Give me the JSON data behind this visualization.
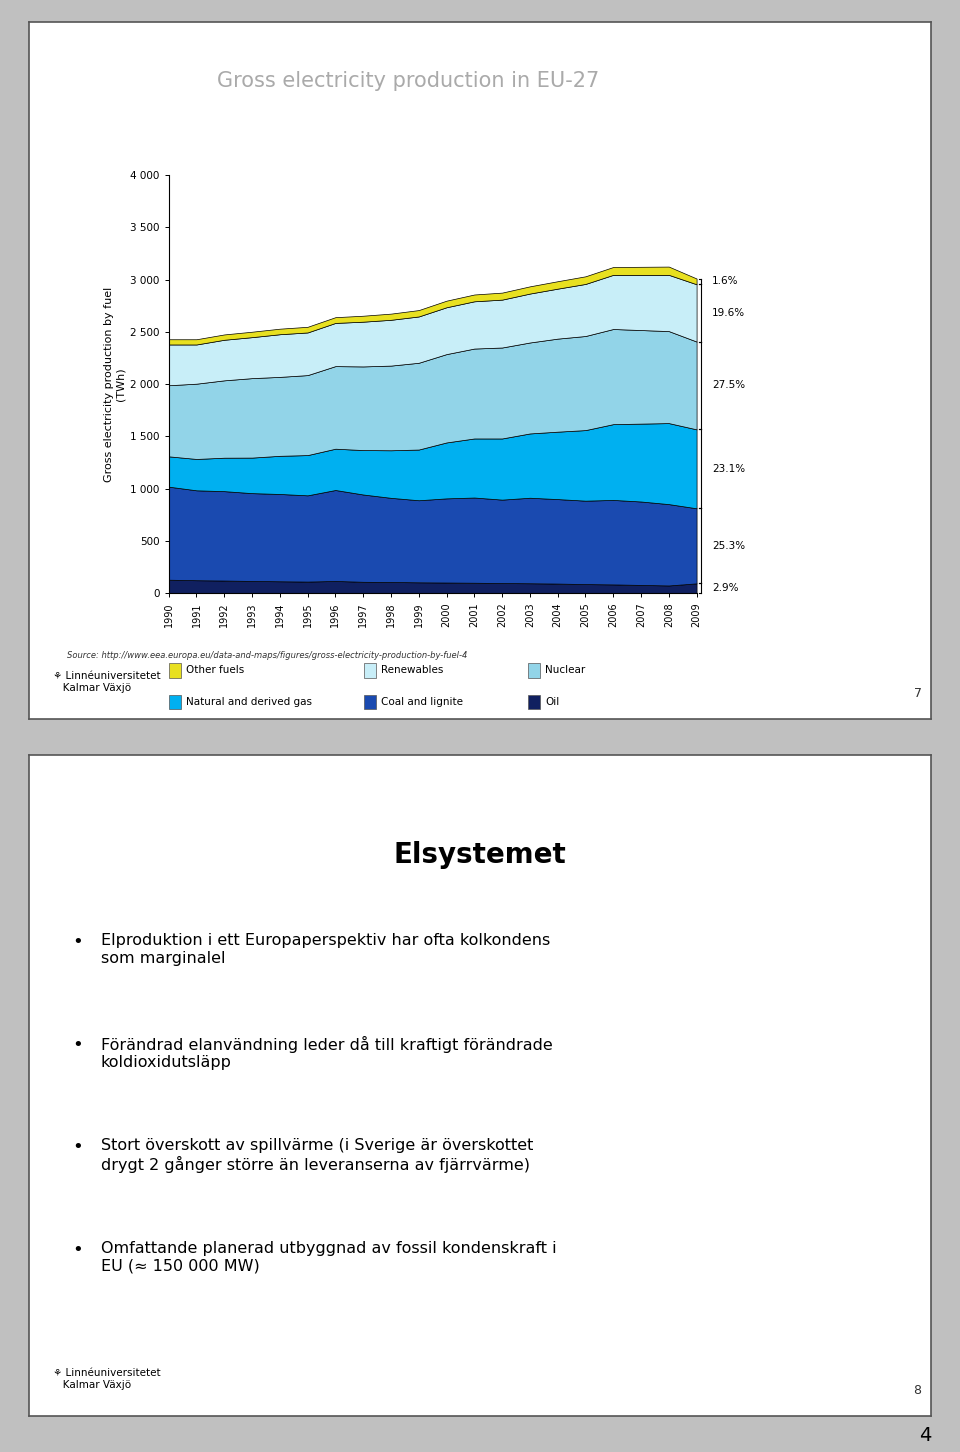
{
  "title": "Gross electricity production in EU-27",
  "ylabel": "Gross electricity production by fuel\n(TWh)",
  "years": [
    1990,
    1991,
    1992,
    1993,
    1994,
    1995,
    1996,
    1997,
    1998,
    1999,
    2000,
    2001,
    2002,
    2003,
    2004,
    2005,
    2006,
    2007,
    2008,
    2009
  ],
  "oil": [
    130,
    125,
    122,
    118,
    115,
    112,
    118,
    110,
    108,
    105,
    103,
    101,
    98,
    96,
    93,
    88,
    85,
    80,
    75,
    95
  ],
  "coal_lignite": [
    890,
    860,
    855,
    840,
    835,
    825,
    870,
    835,
    805,
    785,
    805,
    815,
    798,
    818,
    808,
    798,
    808,
    798,
    778,
    718
  ],
  "gas": [
    290,
    300,
    320,
    340,
    365,
    385,
    395,
    425,
    455,
    485,
    535,
    565,
    585,
    615,
    645,
    675,
    725,
    745,
    775,
    755
  ],
  "nuclear": [
    680,
    720,
    740,
    760,
    755,
    765,
    790,
    800,
    810,
    830,
    845,
    860,
    870,
    870,
    890,
    900,
    910,
    895,
    880,
    840
  ],
  "renewables": [
    390,
    375,
    388,
    392,
    408,
    408,
    413,
    428,
    438,
    443,
    448,
    452,
    458,
    468,
    478,
    498,
    518,
    528,
    538,
    548
  ],
  "other": [
    50,
    50,
    51,
    52,
    53,
    54,
    55,
    57,
    59,
    61,
    63,
    65,
    67,
    69,
    71,
    73,
    75,
    77,
    79,
    55
  ],
  "colors": {
    "oil": "#102060",
    "coal_lignite": "#1a4ab0",
    "gas": "#00b0f0",
    "nuclear": "#92d4e8",
    "renewables": "#c8eef8",
    "other": "#e8e020"
  },
  "pct_labels": [
    "1.6%",
    "19.6%",
    "27.5%",
    "23.1%",
    "25.3%",
    "2.9%"
  ],
  "source": "Source: http://www.eea.europa.eu/data-and-maps/figures/gross-electricity-production-by-fuel-4",
  "slide2_title": "Elsystemet",
  "slide2_bullets": [
    "Elproduktion i ett Europaperspektiv har ofta kolkondens\nsom marginalel",
    "Förändrad elanvändning leder då till kraftigt förändrade\nkoldioxidutsläpp",
    "Stort överskott av spillvärme (i Sverige är överskottet\ndrygt 2 gånger större än leveranserna av fjärrvärme)",
    "Omfattande planerad utbyggnad av fossil kondenskraft i\nEU (≈ 150 000 MW)"
  ],
  "slide_number_1": "7",
  "slide_number_2": "8",
  "page_number": "4",
  "bg_outer": "#c0c0c0",
  "bg_slide": "#ffffff",
  "title_color": "#aaaaaa"
}
